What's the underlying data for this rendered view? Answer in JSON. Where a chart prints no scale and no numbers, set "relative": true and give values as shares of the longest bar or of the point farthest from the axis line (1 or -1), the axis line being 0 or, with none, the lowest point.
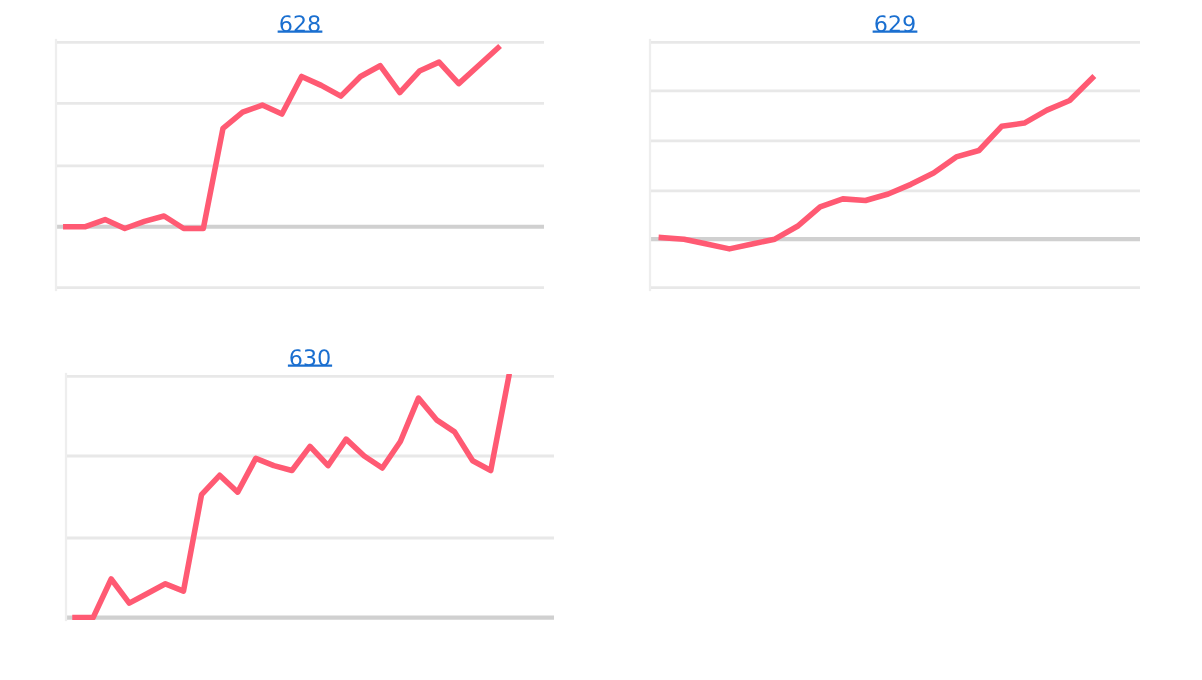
{
  "chart_data": [
    {
      "type": "line",
      "title": "628",
      "relative": true,
      "ref_lines": [
        {
          "axis": "y",
          "value": 1.03,
          "label": null,
          "color": "#e8e8e8"
        },
        {
          "axis": "y",
          "value": 0.69,
          "label": null,
          "color": "#e8e8e8"
        },
        {
          "axis": "y",
          "value": 0.34,
          "label": null,
          "color": "#e8e8e8"
        },
        {
          "axis": "y",
          "value": -0.34,
          "label": null,
          "color": "#e8e8e8"
        }
      ],
      "categories": [
        null,
        null,
        null,
        null,
        null,
        null,
        null,
        null,
        null,
        null,
        null,
        null,
        null,
        null,
        null,
        null,
        null,
        null,
        null,
        null,
        null,
        null,
        null
      ],
      "series": [
        {
          "color": "#ff5a73",
          "values": [
            0,
            0,
            0.04,
            -0.01,
            0.03,
            0.06,
            -0.01,
            -0.01,
            0.55,
            0.64,
            0.68,
            0.63,
            0.84,
            0.79,
            0.73,
            0.84,
            0.9,
            0.75,
            0.87,
            0.92,
            0.8,
            0.9,
            1
          ]
        }
      ]
    },
    {
      "type": "line",
      "title": "629",
      "relative": true,
      "ref_lines": [
        {
          "axis": "y",
          "value": 1.22,
          "label": null,
          "color": "#e8e8e8"
        },
        {
          "axis": "y",
          "value": 0.92,
          "label": null,
          "color": "#e8e8e8"
        },
        {
          "axis": "y",
          "value": 0.61,
          "label": null,
          "color": "#e8e8e8"
        },
        {
          "axis": "y",
          "value": 0.3,
          "label": null,
          "color": "#e8e8e8"
        },
        {
          "axis": "y",
          "value": -0.3,
          "label": null,
          "color": "#e8e8e8"
        }
      ],
      "categories": [
        null,
        null,
        null,
        null,
        null,
        null,
        null,
        null,
        null,
        null,
        null,
        null,
        null,
        null,
        null,
        null,
        null,
        null,
        null,
        null
      ],
      "series": [
        {
          "color": "#ff5a73",
          "values": [
            0.01,
            0,
            -0.03,
            -0.06,
            -0.03,
            0,
            0.08,
            0.2,
            0.25,
            0.24,
            0.28,
            0.34,
            0.41,
            0.51,
            0.55,
            0.7,
            0.72,
            0.8,
            0.86,
            1
          ]
        }
      ]
    },
    {
      "type": "line",
      "title": "630",
      "relative": true,
      "ref_lines": [
        {
          "axis": "y",
          "value": 1.0,
          "label": null,
          "color": "#e8e8e8"
        },
        {
          "axis": "y",
          "value": 0.67,
          "label": null,
          "color": "#e8e8e8"
        },
        {
          "axis": "y",
          "value": 0.33,
          "label": null,
          "color": "#e8e8e8"
        }
      ],
      "categories": [
        null,
        null,
        null,
        null,
        null,
        null,
        null,
        null,
        null,
        null,
        null,
        null,
        null,
        null,
        null,
        null,
        null,
        null,
        null,
        null,
        null,
        null,
        null,
        null,
        null
      ],
      "series": [
        {
          "color": "#ff5a73",
          "values": [
            0,
            0,
            0.16,
            0.06,
            0.1,
            0.14,
            0.11,
            0.51,
            0.59,
            0.52,
            0.66,
            0.63,
            0.61,
            0.71,
            0.63,
            0.74,
            0.67,
            0.62,
            0.73,
            0.91,
            0.82,
            0.77,
            0.65,
            0.61,
            1
          ]
        }
      ]
    }
  ]
}
